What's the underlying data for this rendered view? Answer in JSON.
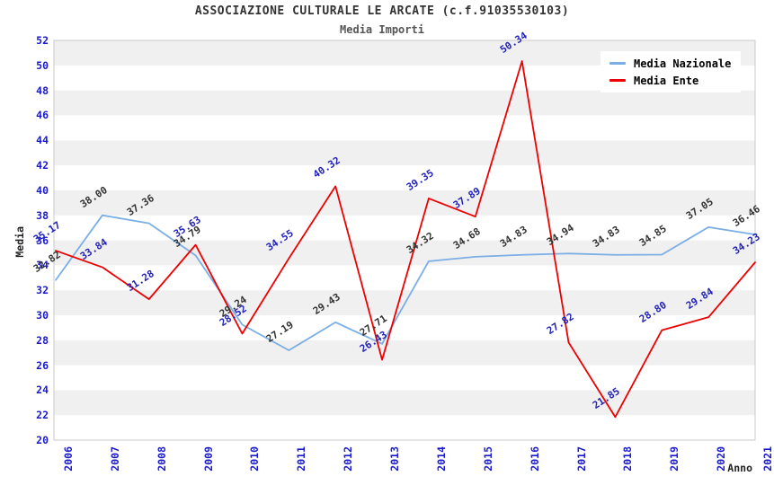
{
  "header": {
    "title": "ASSOCIAZIONE CULTURALE LE ARCATE (c.f.91035530103)",
    "subtitle": "Media Importi"
  },
  "chart_data": {
    "type": "line",
    "title": "ASSOCIAZIONE CULTURALE LE ARCATE (c.f.91035530103)",
    "subtitle": "Media Importi",
    "xlabel": "Anno",
    "ylabel": "Media",
    "ylim": [
      20,
      52
    ],
    "ytick_step": 2,
    "grid": "horizontal-bands-2units",
    "band_colors": [
      "#F0F0F0",
      "#FFFFFF"
    ],
    "plot_border_color": "#C9C9C9",
    "axis_tick_color": "#1A1ACC",
    "legend_position": "top-right",
    "categories": [
      "2006",
      "2007",
      "2008",
      "2009",
      "2010",
      "2011",
      "2012",
      "2013",
      "2014",
      "2015",
      "2016",
      "2017",
      "2018",
      "2019",
      "2020",
      "2021"
    ],
    "series": [
      {
        "name": "Media Nazionale",
        "color": "#7AAEE4",
        "label_color": "#333333",
        "values": [
          32.82,
          38.0,
          37.36,
          34.79,
          29.24,
          27.19,
          29.43,
          27.71,
          34.32,
          34.68,
          34.83,
          34.94,
          34.83,
          34.85,
          37.05,
          36.46
        ]
      },
      {
        "name": "Media Ente",
        "color": "#EE0000",
        "label_color": "#2222BB",
        "values": [
          35.17,
          33.84,
          31.28,
          35.63,
          28.52,
          34.55,
          40.32,
          26.43,
          39.35,
          37.89,
          50.34,
          27.82,
          21.85,
          28.8,
          29.84,
          34.23
        ]
      }
    ]
  }
}
